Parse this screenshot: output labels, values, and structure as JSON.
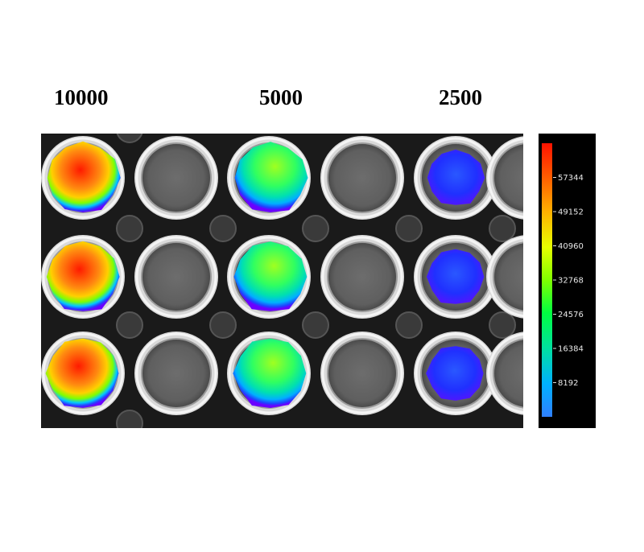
{
  "concentrations": [
    "10000",
    "5000",
    "2500"
  ],
  "plate": {
    "rows": 3,
    "columns": 6,
    "signal_wells": [
      {
        "column": 1,
        "label": "10000",
        "row_levels": [
          0.85,
          0.8,
          0.82
        ]
      },
      {
        "column": 3,
        "label": "5000",
        "row_levels": [
          0.55,
          0.5,
          0.52
        ]
      },
      {
        "column": 5,
        "label": "2500",
        "row_levels": [
          0.18,
          0.16,
          0.15
        ]
      }
    ],
    "empty_columns": [
      2,
      4,
      6
    ]
  },
  "colorbar": {
    "ticks": [
      "57344",
      "49152",
      "40960",
      "32768",
      "24576",
      "16384",
      "8192"
    ],
    "range": [
      0,
      65536
    ],
    "colors": [
      "#ff1a00",
      "#ff8c00",
      "#ffff00",
      "#7fff00",
      "#00e040",
      "#00c0c0",
      "#3399ff"
    ]
  }
}
